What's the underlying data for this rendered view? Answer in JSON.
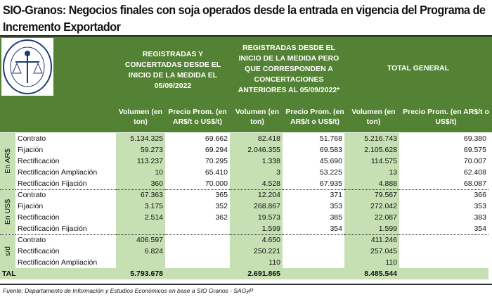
{
  "title": "SIO-Granos: Negocios finales con soja operados desde la entrada en vigencia del Programa de Incremento Exportador",
  "logo_text": "BOLSA DE COMERCIO DE ROSARIO",
  "groups": [
    "REGISTRADAS Y CONCERTADAS DESDE EL INICIO DE LA MEDIDA EL 05/09/2022",
    "REGISTRADAS DESDE EL INICIO DE LA MEDIDA PERO QUE CORRESPONDEN A CONCERTACIONES ANTERIORES AL 05/09/2022*",
    "TOTAL GENERAL"
  ],
  "subheaders": [
    "Volumen (en ton)",
    "Precio Prom. (en AR$/t o US$/t)",
    "Volumen (en ton)",
    "Precio Prom. (en AR$/t o US$/t)",
    "Volumen (en ton)",
    "Precio Prom. (en AR$/t o US$/t)"
  ],
  "sections": [
    {
      "label": "En AR$",
      "rows": [
        [
          "Contrato",
          "5.134.325",
          "69.662",
          "82.418",
          "51.768",
          "5.216.743",
          "69.380"
        ],
        [
          "Fijación",
          "59.273",
          "69.294",
          "2.046.355",
          "69.583",
          "2.105.628",
          "69.575"
        ],
        [
          "Rectificación",
          "113.237",
          "70.295",
          "1.338",
          "45.690",
          "114.575",
          "70.007"
        ],
        [
          "Rectificación Ampliación",
          "10",
          "65.410",
          "3",
          "53.225",
          "13",
          "62.408"
        ],
        [
          "Rectificación Fijación",
          "360",
          "70.000",
          "4.528",
          "67.935",
          "4.888",
          "68.087"
        ]
      ]
    },
    {
      "label": "En US$",
      "rows": [
        [
          "Contrato",
          "67.363",
          "365",
          "12.204",
          "371",
          "79.567",
          "366"
        ],
        [
          "Fijación",
          "3.175",
          "352",
          "268.867",
          "353",
          "272.042",
          "353"
        ],
        [
          "Rectificación",
          "2.514",
          "362",
          "19.573",
          "385",
          "22.087",
          "383"
        ],
        [
          "Rectificación Fijación",
          "",
          "",
          "1.599",
          "354",
          "1.599",
          "354"
        ]
      ]
    },
    {
      "label": "s/d",
      "rows": [
        [
          "Contrato",
          "406.597",
          "",
          "4.650",
          "",
          "411.246",
          ""
        ],
        [
          "Rectificación",
          "6.824",
          "",
          "250.221",
          "",
          "257.045",
          ""
        ],
        [
          "Rectificación Ampliación",
          "",
          "",
          "110",
          "",
          "110",
          ""
        ]
      ]
    }
  ],
  "total": {
    "label": "TAL",
    "values": [
      "5.793.678",
      "",
      "2.691.865",
      "",
      "8.485.544",
      ""
    ]
  },
  "footer": "Fuente: Departamento de Información y Estudios Económicos en base a SIO Granos - SAGyP",
  "colors": {
    "header": "#548235",
    "band": "#c6e0b4"
  }
}
